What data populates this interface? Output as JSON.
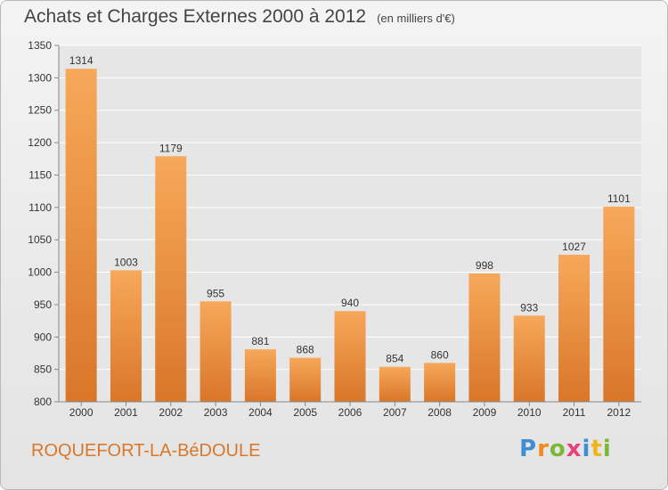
{
  "header": {
    "title": "Achats et Charges Externes 2000 à 2012",
    "subtitle": "(en milliers d'€)"
  },
  "footer": {
    "commune": "ROQUEFORT-LA-BéDOULE",
    "brand": {
      "text": "Proxiti",
      "letter_colors": [
        "#3f8fd0",
        "#f08a1e",
        "#7bb838",
        "#e8407a",
        "#3f8fd0",
        "#f0b41e",
        "#7bb838"
      ]
    }
  },
  "chart_data": {
    "type": "bar",
    "title": "Achats et Charges Externes 2000 à 2012",
    "subtitle": "(en milliers d'€)",
    "categories": [
      "2000",
      "2001",
      "2002",
      "2003",
      "2004",
      "2005",
      "2006",
      "2007",
      "2008",
      "2009",
      "2010",
      "2011",
      "2012"
    ],
    "values": [
      1314,
      1003,
      1179,
      955,
      881,
      868,
      940,
      854,
      860,
      998,
      933,
      1027,
      1101
    ],
    "ylim": [
      800,
      1350
    ],
    "yticks": [
      800,
      850,
      900,
      950,
      1000,
      1050,
      1100,
      1150,
      1200,
      1250,
      1300,
      1350
    ],
    "xlabel": "",
    "ylabel": "",
    "grid": true,
    "legend": "none",
    "colors": {
      "bar_light": "#f7a85a",
      "bar_dark": "#d9762a",
      "grid": "#ffffff",
      "axis": "#888888"
    }
  }
}
